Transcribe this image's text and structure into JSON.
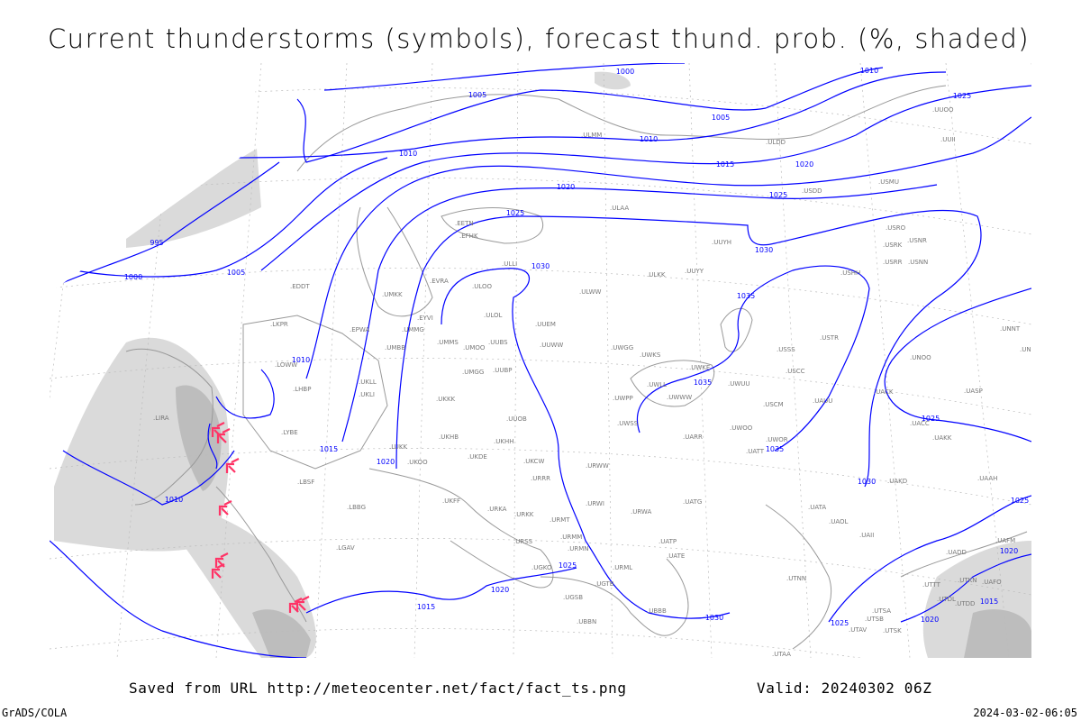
{
  "title": "Current thunderstorms (symbols), forecast thund. prob. (%, shaded)",
  "footer": {
    "saved_from": "Saved from URL http://meteocenter.net/fact/fact_ts.png",
    "valid": "Valid: 20240302 06Z",
    "software": "GrADS/COLA",
    "generated": "2024-03-02-06:05"
  },
  "colors": {
    "isobars": "#0000ff",
    "coastlines": "#999999",
    "thunderstorm_symbols": "#ff3366",
    "probability_shading": "#d0d0d0",
    "grid": "#bbbbbb"
  },
  "isobar_labels": [
    "1000",
    "1005",
    "1005",
    "1010",
    "1025",
    "1010",
    "1015",
    "1020",
    "1010",
    "1020",
    "1025",
    "1025",
    "1030",
    "1030",
    "995",
    "1000",
    "1005",
    "1010",
    "1015",
    "1020",
    "1010",
    "1035",
    "1035",
    "1035",
    "1030",
    "1025",
    "1025",
    "1020",
    "1015",
    "1020",
    "1025",
    "1030",
    "1025",
    "1020",
    "1015"
  ],
  "stations": [
    "LKPR",
    "EPWA",
    "EDDT",
    "UMKK",
    "EYVI",
    "UMMG",
    "EVRA",
    "ULOO",
    "EETN",
    "EFHK",
    "ULLI",
    "ULOL",
    "UUEM",
    "UMMS",
    "UMOO",
    "UUBS",
    "UMBB",
    "LOWW",
    "LHBP",
    "UKLL",
    "UKLI",
    "UMGG",
    "UUBP",
    "UUWW",
    "UWGG",
    "UWKS",
    "UWKE",
    "UWLL",
    "UWWW",
    "UWUU",
    "UWPP",
    "UWSS",
    "UKKK",
    "UUOB",
    "USSS",
    "USCC",
    "USCM",
    "UAUU",
    "USTR",
    "UASP",
    "UNNT",
    "UNBB",
    "UACK",
    "UACC",
    "UAKK",
    "UNOO",
    "USHH",
    "USRR",
    "USNN",
    "USRK",
    "USRO",
    "USNR",
    "USMU",
    "USDD",
    "UUYY",
    "ULKK",
    "ULWW",
    "UUYH",
    "ULAA",
    "ULDD",
    "ULMM",
    "UUOO",
    "UUII",
    "UKHH",
    "UKHB",
    "UKDE",
    "UKCW",
    "UKOO",
    "LUKK",
    "URWW",
    "URRR",
    "LIRA",
    "LYBE",
    "LBSF",
    "LBBG",
    "LGAV",
    "UKFF",
    "URKA",
    "URKK",
    "URMT",
    "URMM",
    "URMN",
    "URSS",
    "URWI",
    "URWA",
    "UATG",
    "UATP",
    "UATE",
    "UATA",
    "UAOL",
    "UAII",
    "UAAH",
    "UAKD",
    "UAFM",
    "UADD",
    "UTDL",
    "UTKN",
    "UAFO",
    "UTTT",
    "UTDD",
    "UTSA",
    "UTSB",
    "UTAV",
    "UTSK",
    "UTAA",
    "UTNN",
    "UGSB",
    "UGTB",
    "UBBN",
    "UGKO",
    "URML",
    "UWOO",
    "UARR",
    "UATT",
    "UWOR",
    "UBBB"
  ],
  "thunderstorm_reports": 8
}
